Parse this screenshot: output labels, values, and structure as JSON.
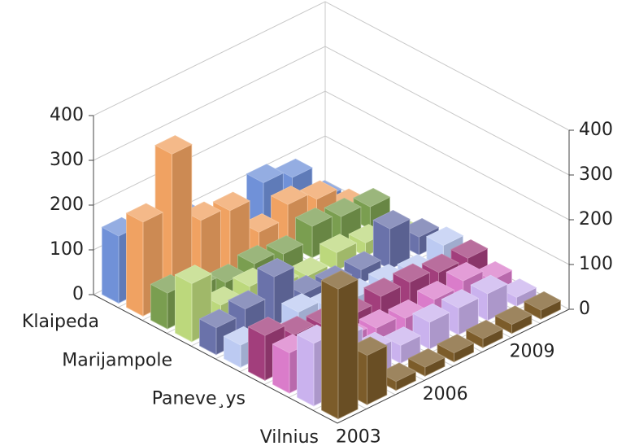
{
  "chart_data": {
    "type": "bar3d",
    "categories": [
      "2003",
      null,
      null,
      "2006",
      null,
      null,
      "2009",
      null
    ],
    "depth_categories": [
      "Klaipeda",
      null,
      null,
      "Marijampole",
      null,
      null,
      "Paneve¸ys",
      null,
      null,
      "Vilnius"
    ],
    "series": [
      {
        "color": "#7091d8",
        "values": [
          150,
          40,
          130,
          40,
          10,
          110,
          90,
          10
        ]
      },
      {
        "color": "#f0a262",
        "values": [
          210,
          330,
          150,
          140,
          60,
          90,
          70,
          20
        ]
      },
      {
        "color": "#7a9e50",
        "values": [
          80,
          60,
          40,
          50,
          40,
          70,
          60,
          50
        ]
      },
      {
        "color": "#bcd87c",
        "values": [
          130,
          50,
          60,
          30,
          20,
          40,
          30,
          20
        ]
      },
      {
        "color": "#6a72aa",
        "values": [
          60,
          70,
          110,
          40,
          30,
          30,
          90,
          40
        ]
      },
      {
        "color": "#bccaf2",
        "values": [
          50,
          30,
          60,
          40,
          30,
          30,
          20,
          50
        ]
      },
      {
        "color": "#a23e7c",
        "values": [
          100,
          70,
          60,
          50,
          60,
          60,
          50,
          50
        ]
      },
      {
        "color": "#da7cca",
        "values": [
          90,
          70,
          60,
          50,
          40,
          50,
          60,
          30
        ]
      },
      {
        "color": "#cab2ee",
        "values": [
          140,
          120,
          60,
          40,
          60,
          60,
          60,
          20
        ]
      },
      {
        "color": "#7c5c2a",
        "values": [
          290,
          110,
          20,
          20,
          20,
          20,
          20,
          20
        ]
      }
    ],
    "ylim": [
      0,
      400
    ],
    "yticks": [
      0,
      100,
      200,
      300,
      400
    ],
    "grid": true
  }
}
